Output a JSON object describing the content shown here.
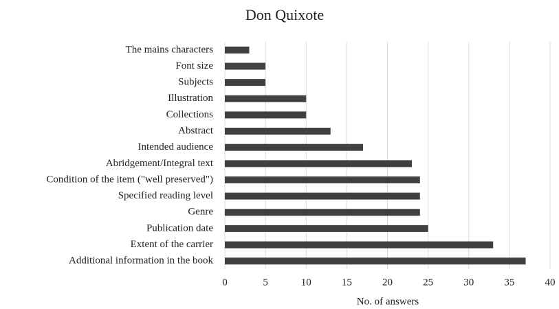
{
  "chart_data": {
    "type": "bar",
    "orientation": "horizontal",
    "title": "Don Quixote",
    "xlabel": "No. of answers",
    "categories": [
      "The mains characters",
      "Font size",
      "Subjects",
      "Illustration",
      "Collections",
      "Abstract",
      "Intended audience",
      "Abridgement/Integral text",
      "Condition of the item (\"well preserved\")",
      "Specified reading level",
      "Genre",
      "Publication date",
      "Extent of the carrier",
      "Additional information in the book"
    ],
    "values": [
      3,
      5,
      5,
      10,
      10,
      13,
      17,
      23,
      24,
      24,
      24,
      25,
      33,
      37
    ],
    "color": "#404040",
    "xlim": [
      0,
      40
    ],
    "xticks": [
      0,
      5,
      10,
      15,
      20,
      25,
      30,
      35,
      40
    ],
    "grid": true
  }
}
